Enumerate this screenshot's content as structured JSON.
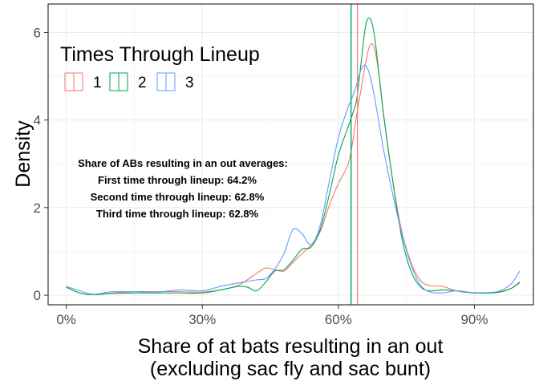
{
  "chart_data": {
    "type": "area",
    "xlabel_line1": "Share of at bats resulting in an out",
    "xlabel_line2": "(excluding sac fly and sac bunt)",
    "ylabel": "Density",
    "xlim": [
      -0.04,
      1.03
    ],
    "ylim": [
      -0.22,
      6.65
    ],
    "x_ticks": [
      0,
      0.3,
      0.6,
      0.9
    ],
    "x_tick_labels": [
      "0%",
      "30%",
      "60%",
      "90%"
    ],
    "y_ticks": [
      0,
      2,
      4,
      6
    ],
    "y_tick_labels": [
      "0",
      "2",
      "4",
      "6"
    ],
    "grid": true,
    "legend": {
      "title": "Times Through Lineup",
      "placement": "top-left",
      "entries": [
        "1",
        "2",
        "3"
      ]
    },
    "annotation": {
      "line1": "Share of ABs resulting in an out averages:",
      "line2": "First time through lineup: 64.2%",
      "line3": "Second time through lineup: 62.8%",
      "line4": "Third time through lineup: 62.8%"
    },
    "series": [
      {
        "name": "1",
        "color": "#F8766D",
        "mean": 0.642,
        "points": [
          [
            0,
            0.18
          ],
          [
            0.03,
            0.05
          ],
          [
            0.06,
            0.01
          ],
          [
            0.1,
            0.05
          ],
          [
            0.15,
            0.08
          ],
          [
            0.2,
            0.08
          ],
          [
            0.25,
            0.08
          ],
          [
            0.3,
            0.07
          ],
          [
            0.34,
            0.12
          ],
          [
            0.38,
            0.23
          ],
          [
            0.42,
            0.5
          ],
          [
            0.44,
            0.62
          ],
          [
            0.46,
            0.58
          ],
          [
            0.48,
            0.55
          ],
          [
            0.5,
            0.75
          ],
          [
            0.52,
            0.95
          ],
          [
            0.54,
            1.15
          ],
          [
            0.56,
            1.45
          ],
          [
            0.58,
            2.05
          ],
          [
            0.6,
            2.55
          ],
          [
            0.62,
            2.95
          ],
          [
            0.63,
            3.4
          ],
          [
            0.64,
            4.1
          ],
          [
            0.65,
            4.7
          ],
          [
            0.66,
            5.3
          ],
          [
            0.67,
            5.72
          ],
          [
            0.68,
            5.62
          ],
          [
            0.69,
            5.0
          ],
          [
            0.7,
            4.1
          ],
          [
            0.72,
            2.6
          ],
          [
            0.74,
            1.45
          ],
          [
            0.76,
            0.75
          ],
          [
            0.78,
            0.35
          ],
          [
            0.8,
            0.22
          ],
          [
            0.83,
            0.2
          ],
          [
            0.86,
            0.1
          ],
          [
            0.9,
            0.05
          ],
          [
            0.95,
            0.07
          ],
          [
            0.98,
            0.15
          ],
          [
            1.0,
            0.28
          ]
        ]
      },
      {
        "name": "2",
        "color": "#00A651",
        "mean": 0.628,
        "points": [
          [
            0,
            0.18
          ],
          [
            0.03,
            0.05
          ],
          [
            0.06,
            0.01
          ],
          [
            0.1,
            0.04
          ],
          [
            0.15,
            0.05
          ],
          [
            0.2,
            0.05
          ],
          [
            0.25,
            0.05
          ],
          [
            0.3,
            0.05
          ],
          [
            0.34,
            0.12
          ],
          [
            0.38,
            0.2
          ],
          [
            0.4,
            0.18
          ],
          [
            0.42,
            0.1
          ],
          [
            0.44,
            0.3
          ],
          [
            0.46,
            0.55
          ],
          [
            0.48,
            0.58
          ],
          [
            0.5,
            0.8
          ],
          [
            0.52,
            1.05
          ],
          [
            0.54,
            1.1
          ],
          [
            0.56,
            1.5
          ],
          [
            0.58,
            2.3
          ],
          [
            0.6,
            3.2
          ],
          [
            0.62,
            3.8
          ],
          [
            0.63,
            4.1
          ],
          [
            0.64,
            4.45
          ],
          [
            0.65,
            5.3
          ],
          [
            0.66,
            6.15
          ],
          [
            0.67,
            6.32
          ],
          [
            0.68,
            5.9
          ],
          [
            0.69,
            5.0
          ],
          [
            0.7,
            4.1
          ],
          [
            0.72,
            2.6
          ],
          [
            0.74,
            1.3
          ],
          [
            0.76,
            0.55
          ],
          [
            0.78,
            0.2
          ],
          [
            0.8,
            0.1
          ],
          [
            0.83,
            0.12
          ],
          [
            0.86,
            0.1
          ],
          [
            0.9,
            0.05
          ],
          [
            0.95,
            0.06
          ],
          [
            0.98,
            0.15
          ],
          [
            1.0,
            0.3
          ]
        ]
      },
      {
        "name": "3",
        "color": "#619CFF",
        "mean": 0.628,
        "points": [
          [
            0,
            0.2
          ],
          [
            0.03,
            0.1
          ],
          [
            0.06,
            0.02
          ],
          [
            0.1,
            0.08
          ],
          [
            0.15,
            0.08
          ],
          [
            0.2,
            0.07
          ],
          [
            0.25,
            0.12
          ],
          [
            0.3,
            0.1
          ],
          [
            0.34,
            0.2
          ],
          [
            0.38,
            0.28
          ],
          [
            0.42,
            0.35
          ],
          [
            0.44,
            0.38
          ],
          [
            0.46,
            0.6
          ],
          [
            0.48,
            0.95
          ],
          [
            0.5,
            1.5
          ],
          [
            0.52,
            1.4
          ],
          [
            0.54,
            1.15
          ],
          [
            0.56,
            1.6
          ],
          [
            0.58,
            2.6
          ],
          [
            0.6,
            3.6
          ],
          [
            0.62,
            4.25
          ],
          [
            0.63,
            4.5
          ],
          [
            0.64,
            4.8
          ],
          [
            0.65,
            5.15
          ],
          [
            0.66,
            5.25
          ],
          [
            0.67,
            5.0
          ],
          [
            0.68,
            4.5
          ],
          [
            0.69,
            3.9
          ],
          [
            0.7,
            3.3
          ],
          [
            0.72,
            2.3
          ],
          [
            0.74,
            1.4
          ],
          [
            0.76,
            0.7
          ],
          [
            0.78,
            0.25
          ],
          [
            0.8,
            0.08
          ],
          [
            0.83,
            0.05
          ],
          [
            0.86,
            0.1
          ],
          [
            0.9,
            0.06
          ],
          [
            0.95,
            0.08
          ],
          [
            0.98,
            0.25
          ],
          [
            1.0,
            0.55
          ]
        ]
      }
    ]
  }
}
